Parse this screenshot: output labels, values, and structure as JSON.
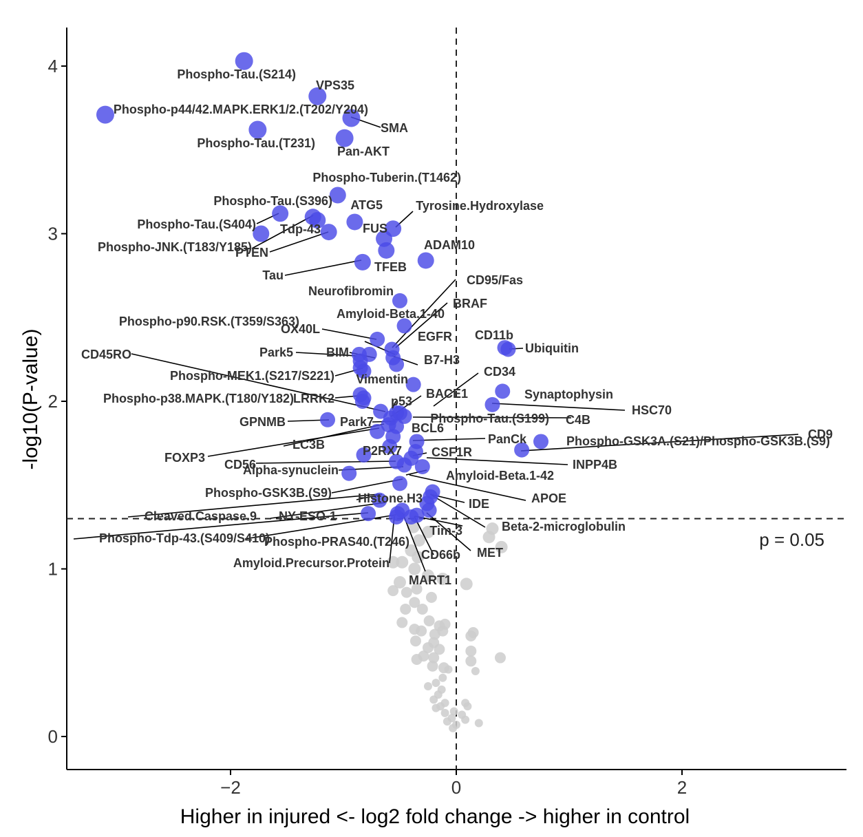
{
  "chart_data": {
    "type": "scatter",
    "title": "",
    "xlabel": "Higher in injured <- log2 fold change -> higher in control",
    "ylabel": "-log10(P-value)",
    "xlim": [
      -3.45,
      3.45
    ],
    "ylim": [
      -0.2,
      4.23
    ],
    "x_ticks": [
      -2,
      0,
      2
    ],
    "y_ticks": [
      0,
      1,
      2,
      3,
      4
    ],
    "grid": false,
    "threshold_line": {
      "y": 1.3,
      "label": "p = 0.05"
    },
    "zero_line": {
      "x": 0
    },
    "colors": {
      "significant": "#4a4ae6",
      "not_significant": "#cccccc"
    },
    "significant_points": [
      {
        "label": "Phospho-Tau.(S214)",
        "x": -1.88,
        "y": 4.03
      },
      {
        "label": "VPS35",
        "x": -1.23,
        "y": 3.82
      },
      {
        "label": "Phospho-p44/42.MAPK.ERK1/2.(T202/Y204)",
        "x": -3.11,
        "y": 3.71
      },
      {
        "label": "SMA",
        "x": -0.93,
        "y": 3.69
      },
      {
        "label": "Phospho-Tau.(T231)",
        "x": -1.76,
        "y": 3.62
      },
      {
        "label": "Pan-AKT",
        "x": -0.99,
        "y": 3.57
      },
      {
        "label": "Phospho-Tuberin.(T1462)",
        "x": -1.05,
        "y": 3.23
      },
      {
        "label": "Phospho-Tau.(S396)",
        "x": -1.56,
        "y": 3.12
      },
      {
        "label": "ATG5",
        "x": -1.27,
        "y": 3.1
      },
      {
        "label": "Phospho-Tau.(S404)",
        "x": -1.23,
        "y": 3.08
      },
      {
        "label": "Tyrosine.Hydroxylase",
        "x": -0.56,
        "y": 3.03
      },
      {
        "label": "FUS",
        "x": -0.9,
        "y": 3.07
      },
      {
        "label": "Tdp-43",
        "x": -1.13,
        "y": 3.01
      },
      {
        "label": "Phospho-JNK.(T183/Y185)",
        "x": -1.73,
        "y": 3.0
      },
      {
        "label": "PTEN",
        "x": -0.64,
        "y": 2.97
      },
      {
        "label": "ADAM10",
        "x": -0.62,
        "y": 2.9
      },
      {
        "label": "TFEB",
        "x": -0.27,
        "y": 2.84
      },
      {
        "label": "Tau",
        "x": -0.83,
        "y": 2.83
      },
      {
        "label": "Neurofibromin",
        "x": -0.5,
        "y": 2.6
      },
      {
        "label": "CD95/Fas",
        "x": -0.57,
        "y": 2.31
      },
      {
        "label": "BRAF",
        "x": -0.46,
        "y": 2.45
      },
      {
        "label": "Amyloid-Beta.1-40",
        "x": -0.7,
        "y": 2.37
      },
      {
        "label": "Phospho-p90.RSK.(T359/S363)",
        "x": -0.86,
        "y": 2.28
      },
      {
        "label": "OX40L",
        "x": -0.56,
        "y": 2.26
      },
      {
        "label": "EGFR",
        "x": -0.53,
        "y": 2.22
      },
      {
        "label": "CD11b",
        "x": 0.43,
        "y": 2.32
      },
      {
        "label": "Ubiquitin",
        "x": 0.46,
        "y": 2.31
      },
      {
        "label": "Park5",
        "x": -0.85,
        "y": 2.24
      },
      {
        "label": "BIM",
        "x": -0.77,
        "y": 2.28
      },
      {
        "label": "CD45RO",
        "x": -0.82,
        "y": 2.18
      },
      {
        "label": "B7-H3",
        "x": -0.38,
        "y": 2.1
      },
      {
        "label": "Phospho-MEK1.(S217/S221)",
        "x": -0.85,
        "y": 2.2
      },
      {
        "label": "Vimentin",
        "x": -0.83,
        "y": 2.0
      },
      {
        "label": "CD34",
        "x": -0.53,
        "y": 1.93
      },
      {
        "label": "Synaptophysin",
        "x": 0.41,
        "y": 2.06
      },
      {
        "label": "BACE1",
        "x": -0.67,
        "y": 1.94
      },
      {
        "label": "Phospho-p38.MAPK.(T180/Y182)",
        "x": -0.85,
        "y": 2.04
      },
      {
        "label": "LRRK2",
        "x": -0.82,
        "y": 2.02
      },
      {
        "label": "p53",
        "x": -0.58,
        "y": 1.9
      },
      {
        "label": "HSC70",
        "x": 0.32,
        "y": 1.98
      },
      {
        "label": "GPNMB",
        "x": -1.14,
        "y": 1.89
      },
      {
        "label": "Park7",
        "x": -0.6,
        "y": 1.86
      },
      {
        "label": "Phospho-Tau.(S199)",
        "x": -0.5,
        "y": 1.93
      },
      {
        "label": "C4B",
        "x": -0.46,
        "y": 1.91
      },
      {
        "label": "BCL6",
        "x": -0.53,
        "y": 1.85
      },
      {
        "label": "LC3B",
        "x": -0.7,
        "y": 1.82
      },
      {
        "label": "CD9",
        "x": 0.75,
        "y": 1.76
      },
      {
        "label": "PanCk",
        "x": -0.35,
        "y": 1.76
      },
      {
        "label": "Phospho-GSK3A.(S21)/Phospho-GSK3B.(S9)",
        "x": 0.58,
        "y": 1.71
      },
      {
        "label": "FOXP3",
        "x": -0.56,
        "y": 1.79
      },
      {
        "label": "P2RX7",
        "x": -0.59,
        "y": 1.73
      },
      {
        "label": "CSF1R",
        "x": -0.36,
        "y": 1.7
      },
      {
        "label": "CD56",
        "x": -0.82,
        "y": 1.68
      },
      {
        "label": "INPP4B",
        "x": -0.4,
        "y": 1.66
      },
      {
        "label": "Alpha-synuclein",
        "x": -0.53,
        "y": 1.64
      },
      {
        "label": "Amyloid-Beta.1-42",
        "x": -0.46,
        "y": 1.62
      },
      {
        "label": "APOE",
        "x": -0.3,
        "y": 1.61
      },
      {
        "label": "Phospho-GSK3B.(S9)",
        "x": -0.95,
        "y": 1.57
      },
      {
        "label": "Histone.H3",
        "x": -0.5,
        "y": 1.51
      },
      {
        "label": "IDE",
        "x": -0.21,
        "y": 1.46
      },
      {
        "label": "Cleaved.Caspase.9",
        "x": -0.23,
        "y": 1.43
      },
      {
        "label": "NY-ESO-1",
        "x": -0.68,
        "y": 1.41
      },
      {
        "label": "Beta-2-microglobulin",
        "x": -0.26,
        "y": 1.39
      },
      {
        "label": "Phospho-Tdp-43.(S409/S410)",
        "x": -0.78,
        "y": 1.33
      },
      {
        "label": "Phospho-PRAS40.(T246)",
        "x": -0.48,
        "y": 1.35
      },
      {
        "label": "Tim-3",
        "x": -0.35,
        "y": 1.32
      },
      {
        "label": "MET",
        "x": -0.24,
        "y": 1.35
      },
      {
        "label": "CD66b",
        "x": -0.4,
        "y": 1.31
      },
      {
        "label": "Amyloid.Precursor.Protein",
        "x": -0.53,
        "y": 1.31
      },
      {
        "label": "MART1",
        "x": -0.52,
        "y": 1.33
      }
    ],
    "non_significant_points": [
      {
        "x": -0.38,
        "y": 1.25
      },
      {
        "x": -0.25,
        "y": 1.22
      },
      {
        "x": -0.33,
        "y": 1.17
      },
      {
        "x": 0.32,
        "y": 1.24
      },
      {
        "x": 0.29,
        "y": 1.19
      },
      {
        "x": 0.4,
        "y": 1.13
      },
      {
        "x": -0.4,
        "y": 1.11
      },
      {
        "x": -0.34,
        "y": 1.07
      },
      {
        "x": -0.48,
        "y": 1.04
      },
      {
        "x": -0.56,
        "y": 1.04
      },
      {
        "x": -0.37,
        "y": 1.0
      },
      {
        "x": -0.25,
        "y": 0.96
      },
      {
        "x": -0.5,
        "y": 0.92
      },
      {
        "x": -0.12,
        "y": 0.94
      },
      {
        "x": 0.09,
        "y": 0.91
      },
      {
        "x": -0.56,
        "y": 0.87
      },
      {
        "x": -0.44,
        "y": 0.86
      },
      {
        "x": -0.35,
        "y": 0.88
      },
      {
        "x": -0.22,
        "y": 0.83
      },
      {
        "x": -0.45,
        "y": 0.76
      },
      {
        "x": -0.37,
        "y": 0.8
      },
      {
        "x": -0.3,
        "y": 0.76
      },
      {
        "x": -0.48,
        "y": 0.68
      },
      {
        "x": -0.24,
        "y": 0.69
      },
      {
        "x": -0.15,
        "y": 0.66
      },
      {
        "x": -0.1,
        "y": 0.67
      },
      {
        "x": -0.37,
        "y": 0.64
      },
      {
        "x": -0.31,
        "y": 0.63
      },
      {
        "x": -0.19,
        "y": 0.61
      },
      {
        "x": -0.12,
        "y": 0.63
      },
      {
        "x": 0.15,
        "y": 0.62
      },
      {
        "x": 0.13,
        "y": 0.6
      },
      {
        "x": -0.36,
        "y": 0.57
      },
      {
        "x": -0.2,
        "y": 0.56
      },
      {
        "x": -0.25,
        "y": 0.53
      },
      {
        "x": -0.15,
        "y": 0.52
      },
      {
        "x": 0.13,
        "y": 0.51
      },
      {
        "x": -0.29,
        "y": 0.48
      },
      {
        "x": -0.35,
        "y": 0.46
      },
      {
        "x": -0.2,
        "y": 0.47
      },
      {
        "x": 0.13,
        "y": 0.45
      },
      {
        "x": 0.39,
        "y": 0.47
      },
      {
        "x": -0.21,
        "y": 0.42
      },
      {
        "x": -0.11,
        "y": 0.41
      },
      {
        "x": -0.07,
        "y": 0.4
      },
      {
        "x": 0.17,
        "y": 0.39
      },
      {
        "x": -0.12,
        "y": 0.35
      },
      {
        "x": -0.18,
        "y": 0.32
      },
      {
        "x": -0.25,
        "y": 0.3
      },
      {
        "x": -0.13,
        "y": 0.28
      },
      {
        "x": -0.16,
        "y": 0.25
      },
      {
        "x": -0.2,
        "y": 0.22
      },
      {
        "x": -0.1,
        "y": 0.2
      },
      {
        "x": -0.14,
        "y": 0.18
      },
      {
        "x": -0.18,
        "y": 0.17
      },
      {
        "x": 0.08,
        "y": 0.2
      },
      {
        "x": 0.1,
        "y": 0.18
      },
      {
        "x": -0.02,
        "y": 0.15
      },
      {
        "x": -0.1,
        "y": 0.14
      },
      {
        "x": 0.05,
        "y": 0.13
      },
      {
        "x": -0.04,
        "y": 0.11
      },
      {
        "x": 0.08,
        "y": 0.1
      },
      {
        "x": -0.08,
        "y": 0.09
      },
      {
        "x": 0.0,
        "y": 0.07
      },
      {
        "x": 0.2,
        "y": 0.08
      },
      {
        "x": -0.03,
        "y": 0.05
      }
    ]
  }
}
